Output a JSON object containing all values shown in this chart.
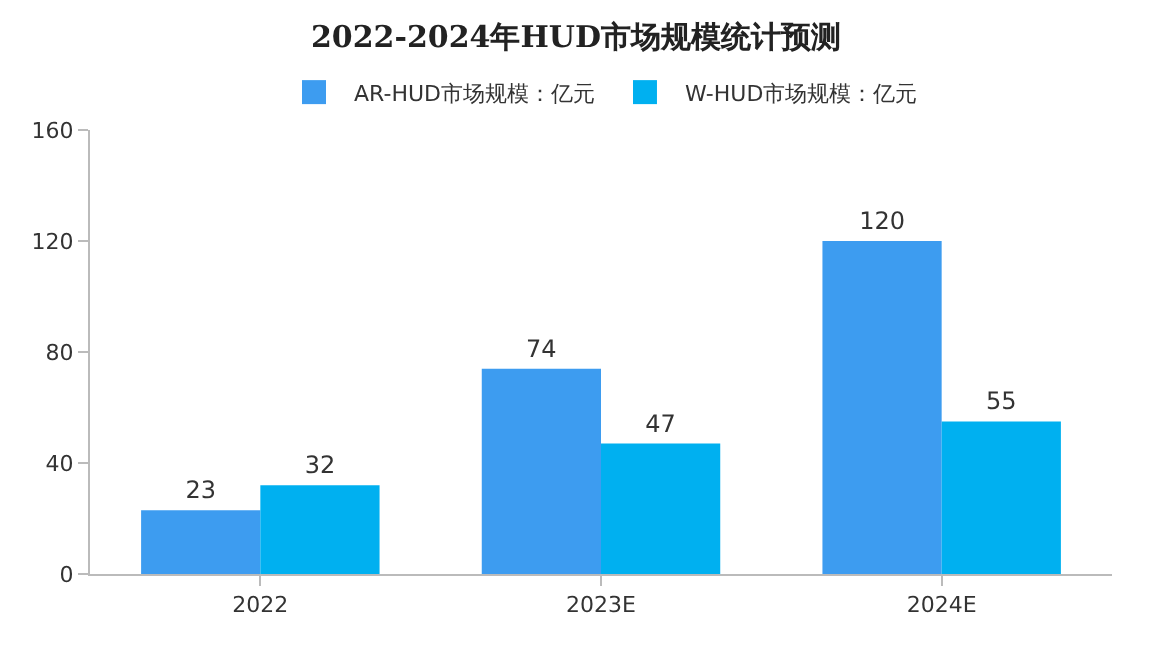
{
  "chart_data": {
    "type": "bar",
    "title": "2022-2024年HUD市场规模统计预测",
    "categories": [
      "2022",
      "2023E",
      "2024E"
    ],
    "series": [
      {
        "name": "AR-HUD市场规模：亿元",
        "color": "#3d9cf0",
        "values": [
          23,
          74,
          120
        ]
      },
      {
        "name": "W-HUD市场规模：亿元",
        "color": "#00b0f0",
        "values": [
          32,
          47,
          55
        ]
      }
    ],
    "ylim": [
      0,
      160
    ],
    "yticks": [
      0,
      40,
      80,
      120,
      160
    ],
    "grid": false,
    "legend": "top",
    "data_labels": true
  }
}
